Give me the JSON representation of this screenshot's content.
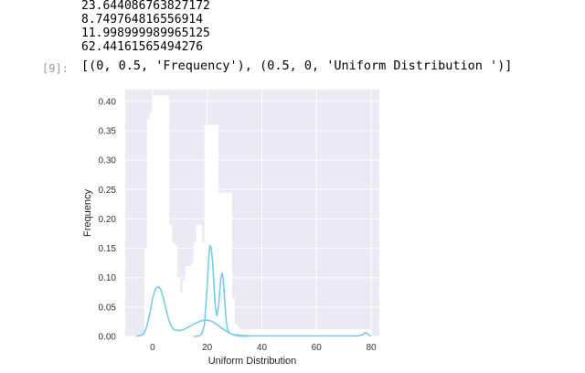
{
  "cell": {
    "stdout_lines": [
      "23.644086763827172",
      "8.749764816556914",
      "11.998999989965125",
      "62.44161565494276"
    ],
    "prompt": "[9]:",
    "result_text": "[(0, 0.5, 'Frequency'), (0.5, 0, 'Uniform Distribution ')]"
  },
  "chart_data": {
    "type": "area",
    "xlabel": "Uniform Distribution",
    "ylabel": "Frequency",
    "xlim": [
      -10,
      83
    ],
    "ylim": [
      0,
      0.42
    ],
    "xticks": [
      0,
      20,
      40,
      60,
      80
    ],
    "yticks": [
      0.0,
      0.05,
      0.1,
      0.15,
      0.2,
      0.25,
      0.3,
      0.35,
      0.4
    ],
    "grid": true,
    "colors": {
      "background": "#eaeaf2",
      "grid": "#ffffff",
      "histogram": "#ffffff",
      "kde": "#78cde6"
    },
    "histogram": {
      "bin_width": 1,
      "bins": [
        {
          "x": -3,
          "y": 0.15
        },
        {
          "x": -2,
          "y": 0.37
        },
        {
          "x": -1,
          "y": 0.38
        },
        {
          "x": 0,
          "y": 0.41
        },
        {
          "x": 1,
          "y": 0.41
        },
        {
          "x": 2,
          "y": 0.41
        },
        {
          "x": 3,
          "y": 0.41
        },
        {
          "x": 4,
          "y": 0.41
        },
        {
          "x": 5,
          "y": 0.41
        },
        {
          "x": 6,
          "y": 0.19
        },
        {
          "x": 7,
          "y": 0.16
        },
        {
          "x": 8,
          "y": 0.155
        },
        {
          "x": 9,
          "y": 0.1
        },
        {
          "x": 10,
          "y": 0.075
        },
        {
          "x": 11,
          "y": 0.095
        },
        {
          "x": 12,
          "y": 0.12
        },
        {
          "x": 13,
          "y": 0.12
        },
        {
          "x": 14,
          "y": 0.125
        },
        {
          "x": 15,
          "y": 0.16
        },
        {
          "x": 16,
          "y": 0.19
        },
        {
          "x": 17,
          "y": 0.19
        },
        {
          "x": 18,
          "y": 0.16
        },
        {
          "x": 19,
          "y": 0.36
        },
        {
          "x": 20,
          "y": 0.36
        },
        {
          "x": 21,
          "y": 0.36
        },
        {
          "x": 22,
          "y": 0.36
        },
        {
          "x": 23,
          "y": 0.36
        },
        {
          "x": 24,
          "y": 0.245
        },
        {
          "x": 25,
          "y": 0.245
        },
        {
          "x": 26,
          "y": 0.245
        },
        {
          "x": 27,
          "y": 0.245
        },
        {
          "x": 28,
          "y": 0.245
        },
        {
          "x": 29,
          "y": 0.065
        },
        {
          "x": 30,
          "y": 0.02
        },
        {
          "x": 31,
          "y": 0.015
        },
        {
          "x": 32,
          "y": 0.012
        },
        {
          "x": 33,
          "y": 0.012
        },
        {
          "x": 34,
          "y": 0.012
        },
        {
          "x": 35,
          "y": 0.012
        },
        {
          "x": 36,
          "y": 0.012
        },
        {
          "x": 37,
          "y": 0.012
        },
        {
          "x": 38,
          "y": 0.012
        },
        {
          "x": 39,
          "y": 0.012
        },
        {
          "x": 40,
          "y": 0.012
        },
        {
          "x": 41,
          "y": 0.012
        },
        {
          "x": 42,
          "y": 0.012
        },
        {
          "x": 43,
          "y": 0.012
        },
        {
          "x": 44,
          "y": 0.012
        },
        {
          "x": 45,
          "y": 0.012
        },
        {
          "x": 46,
          "y": 0.012
        },
        {
          "x": 47,
          "y": 0.012
        },
        {
          "x": 48,
          "y": 0.012
        },
        {
          "x": 49,
          "y": 0.012
        },
        {
          "x": 50,
          "y": 0.012
        },
        {
          "x": 51,
          "y": 0.012
        },
        {
          "x": 52,
          "y": 0.012
        },
        {
          "x": 53,
          "y": 0.012
        },
        {
          "x": 54,
          "y": 0.012
        },
        {
          "x": 55,
          "y": 0.012
        },
        {
          "x": 56,
          "y": 0.012
        },
        {
          "x": 57,
          "y": 0.012
        },
        {
          "x": 58,
          "y": 0.012
        },
        {
          "x": 59,
          "y": 0.012
        },
        {
          "x": 60,
          "y": 0.012
        },
        {
          "x": 61,
          "y": 0.012
        },
        {
          "x": 62,
          "y": 0.012
        },
        {
          "x": 63,
          "y": 0.012
        },
        {
          "x": 64,
          "y": 0.012
        },
        {
          "x": 65,
          "y": 0.012
        },
        {
          "x": 66,
          "y": 0.012
        },
        {
          "x": 67,
          "y": 0.012
        },
        {
          "x": 68,
          "y": 0.012
        },
        {
          "x": 69,
          "y": 0.012
        },
        {
          "x": 70,
          "y": 0.012
        },
        {
          "x": 71,
          "y": 0.012
        },
        {
          "x": 72,
          "y": 0.012
        },
        {
          "x": 73,
          "y": 0.012
        },
        {
          "x": 74,
          "y": 0.012
        },
        {
          "x": 75,
          "y": 0.012
        },
        {
          "x": 76,
          "y": 0.012
        },
        {
          "x": 77,
          "y": 0.012
        },
        {
          "x": 78,
          "y": 0.012
        },
        {
          "x": 79,
          "y": 0.012
        }
      ]
    },
    "series": [
      {
        "x": [
          -6,
          -4,
          -3,
          -2,
          -1,
          0,
          1,
          2,
          3,
          4,
          5,
          6,
          7,
          8,
          10,
          12,
          14,
          16,
          18,
          20,
          22,
          24,
          26,
          28,
          30,
          32,
          35
        ],
        "values": [
          0.0,
          0.002,
          0.006,
          0.018,
          0.04,
          0.065,
          0.08,
          0.085,
          0.08,
          0.065,
          0.045,
          0.027,
          0.016,
          0.011,
          0.01,
          0.013,
          0.018,
          0.023,
          0.027,
          0.028,
          0.025,
          0.019,
          0.012,
          0.006,
          0.002,
          0.0005,
          0.0
        ]
      },
      {
        "x": [
          15,
          17,
          18,
          19,
          20,
          20.5,
          21,
          21.5,
          22,
          22.5,
          23,
          23.5,
          24,
          24.5,
          25,
          25.5,
          26,
          26.5,
          27,
          27.5,
          28,
          29,
          30,
          32,
          34,
          36,
          40,
          45,
          50,
          55,
          60,
          65,
          70,
          73,
          75,
          77,
          78,
          79,
          80
        ],
        "values": [
          0.0,
          0.001,
          0.004,
          0.02,
          0.085,
          0.13,
          0.155,
          0.15,
          0.125,
          0.085,
          0.05,
          0.035,
          0.045,
          0.07,
          0.1,
          0.108,
          0.09,
          0.055,
          0.025,
          0.012,
          0.007,
          0.004,
          0.003,
          0.002,
          0.0015,
          0.001,
          0.001,
          0.001,
          0.001,
          0.001,
          0.001,
          0.001,
          0.001,
          0.001,
          0.001,
          0.003,
          0.007,
          0.003,
          0.0
        ]
      }
    ]
  }
}
